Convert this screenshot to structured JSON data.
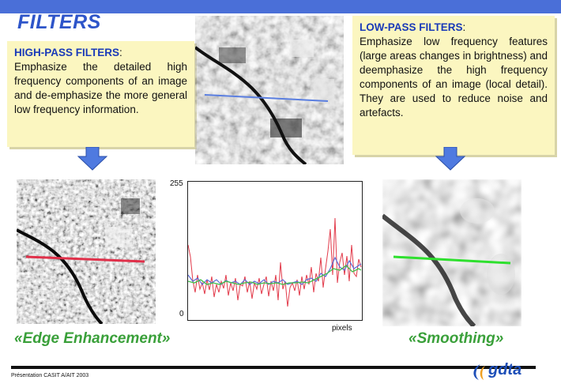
{
  "title": "FILTERS",
  "high_pass": {
    "heading": "HIGH-PASS FILTERS",
    "colon": ":",
    "text": "Emphasize the detailed high frequency components of an image and de-emphasize the more general low frequency information."
  },
  "low_pass": {
    "heading": "LOW-PASS FILTERS",
    "colon": ":",
    "text": "Emphasize low frequency features (large areas changes in brightness) and deemphasize the high frequency components of an image (local detail). They are used to reduce noise and artefacts."
  },
  "plot": {
    "y_top_label": "255",
    "y_bottom_label": "0",
    "x_label": "pixels",
    "line_colors": {
      "original": "#e23a4a",
      "smoothed": "#3fbf4a",
      "edge": "#5a6cd6"
    }
  },
  "captions": {
    "left": "«Edge Enhancement»",
    "right": "«Smoothing»"
  },
  "colors": {
    "accent_blue": "#2e55c9",
    "note_yellow": "#fbf6c0",
    "caption_green": "#3aa03a",
    "profile_blue": "#5b7fe0",
    "profile_red": "#e0304a",
    "profile_green": "#2ee02e"
  },
  "footer": {
    "credit": "Présentation CASIT A/AIT 2003",
    "logo_text": "gdta"
  }
}
